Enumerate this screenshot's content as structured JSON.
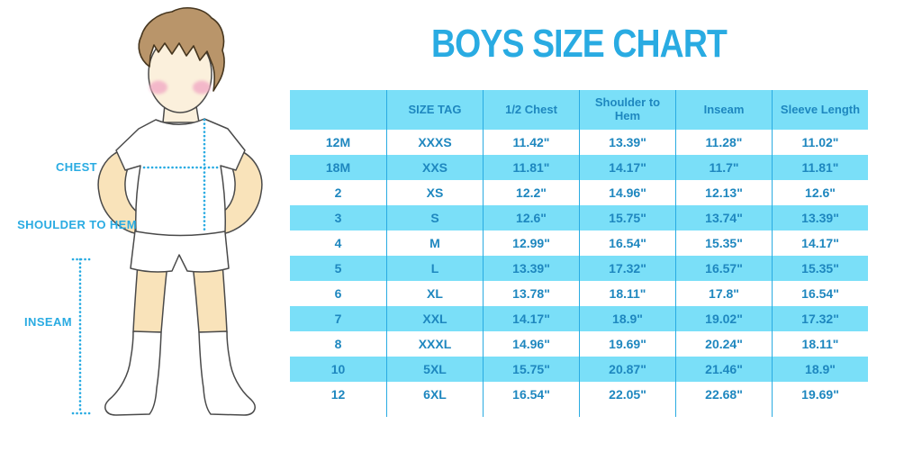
{
  "title": "BOYS SIZE CHART",
  "figure_labels": {
    "chest": "CHEST",
    "shoulder_to_hem": "SHOULDER TO HEM",
    "inseam": "INSEAM"
  },
  "colors": {
    "accent": "#29ABE2",
    "table_fill": "#7ADFF8",
    "cell_text": "#1E87BF",
    "hair": "#B9956A",
    "skin_face": "#FBF0DC",
    "skin_limb": "#F9E3BA",
    "cheek": "#F2AFC6"
  },
  "chart_data": {
    "type": "table",
    "title": "BOYS SIZE CHART",
    "columns": [
      "",
      "SIZE TAG",
      "1/2 Chest",
      "Shoulder to Hem",
      "Inseam",
      "Sleeve Length"
    ],
    "rows": [
      [
        "12M",
        "XXXS",
        "11.42\"",
        "13.39\"",
        "11.28\"",
        "11.02\""
      ],
      [
        "18M",
        "XXS",
        "11.81\"",
        "14.17\"",
        "11.7\"",
        "11.81\""
      ],
      [
        "2",
        "XS",
        "12.2\"",
        "14.96\"",
        "12.13\"",
        "12.6\""
      ],
      [
        "3",
        "S",
        "12.6\"",
        "15.75\"",
        "13.74\"",
        "13.39\""
      ],
      [
        "4",
        "M",
        "12.99\"",
        "16.54\"",
        "15.35\"",
        "14.17\""
      ],
      [
        "5",
        "L",
        "13.39\"",
        "17.32\"",
        "16.57\"",
        "15.35\""
      ],
      [
        "6",
        "XL",
        "13.78\"",
        "18.11\"",
        "17.8\"",
        "16.54\""
      ],
      [
        "7",
        "XXL",
        "14.17\"",
        "18.9\"",
        "19.02\"",
        "17.32\""
      ],
      [
        "8",
        "XXXL",
        "14.96\"",
        "19.69\"",
        "20.24\"",
        "18.11\""
      ],
      [
        "10",
        "5XL",
        "15.75\"",
        "20.87\"",
        "21.46\"",
        "18.9\""
      ],
      [
        "12",
        "6XL",
        "16.54\"",
        "22.05\"",
        "22.68\"",
        "19.69\""
      ]
    ],
    "row_striping": [
      "white",
      "blue"
    ],
    "legend_position": "none",
    "grid": false
  }
}
